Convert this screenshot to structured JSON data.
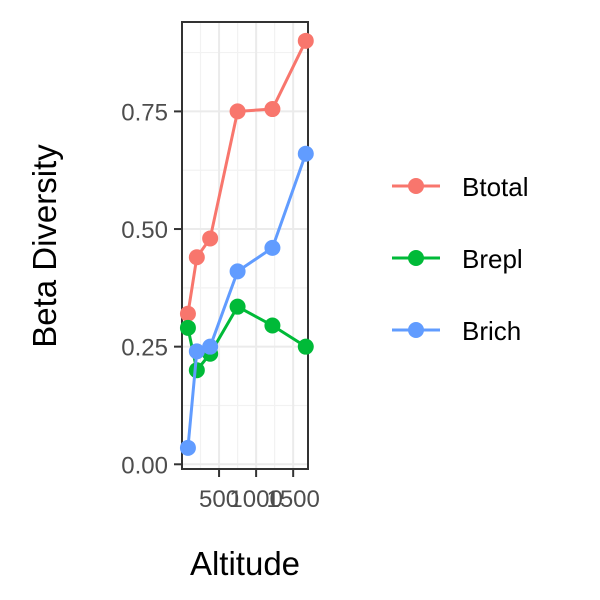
{
  "chart_data": {
    "type": "line",
    "xlabel": "Altitude",
    "ylabel": "Beta Diversity",
    "xlim": [
      0,
      1700
    ],
    "ylim": [
      -0.01,
      0.94
    ],
    "x_ticks": [
      {
        "value": 500,
        "label": "500"
      },
      {
        "value": 1000,
        "label": "1000"
      },
      {
        "value": 1500,
        "label": "1500"
      }
    ],
    "y_ticks": [
      {
        "value": 0.0,
        "label": "0.00"
      },
      {
        "value": 0.25,
        "label": "0.25"
      },
      {
        "value": 0.5,
        "label": "0.50"
      },
      {
        "value": 0.75,
        "label": "0.75"
      }
    ],
    "grid": true,
    "legend_position": "right",
    "series": [
      {
        "name": "Btotal",
        "color": "#F8766D",
        "x": [
          80,
          200,
          380,
          750,
          1220,
          1670
        ],
        "y": [
          0.32,
          0.44,
          0.48,
          0.75,
          0.755,
          0.9
        ]
      },
      {
        "name": "Brepl",
        "color": "#00BA38",
        "x": [
          80,
          200,
          380,
          750,
          1220,
          1670
        ],
        "y": [
          0.29,
          0.2,
          0.235,
          0.335,
          0.295,
          0.25
        ]
      },
      {
        "name": "Brich",
        "color": "#619CFF",
        "x": [
          80,
          200,
          380,
          750,
          1220,
          1670
        ],
        "y": [
          0.035,
          0.24,
          0.25,
          0.41,
          0.46,
          0.66
        ]
      }
    ]
  }
}
